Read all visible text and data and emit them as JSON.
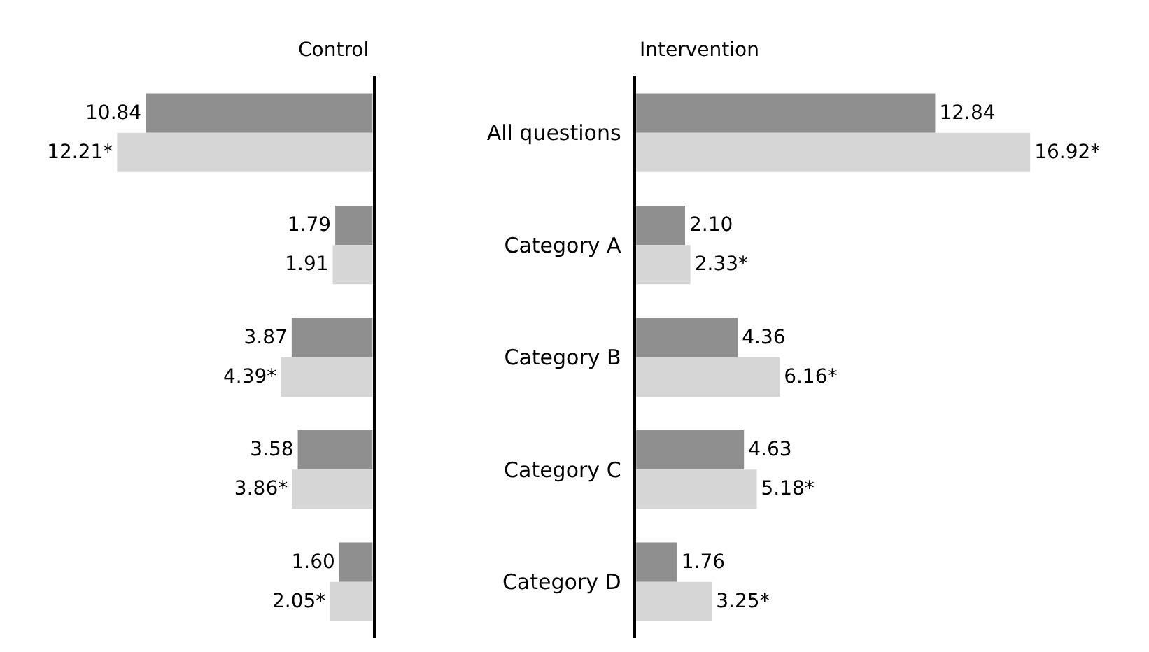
{
  "chart_data": [
    {
      "type": "bar",
      "orientation": "horizontal",
      "title": "Control",
      "categories": [
        null,
        null,
        null,
        null,
        null
      ],
      "tick_labels": false,
      "series": [
        {
          "color": "#8f8f8f",
          "values": [
            10.84,
            1.79,
            3.87,
            3.58,
            1.6
          ],
          "value_labels": [
            "10.84",
            "1.79",
            "3.87",
            "3.58",
            "1.60"
          ]
        },
        {
          "color": "#d6d6d6",
          "values": [
            12.21,
            1.91,
            4.39,
            3.86,
            2.05
          ],
          "value_labels": [
            "12.21*",
            "1.91",
            "4.39*",
            "3.86*",
            "2.05*"
          ]
        }
      ]
    },
    {
      "type": "bar",
      "orientation": "horizontal",
      "title": "Intervention",
      "categories": [
        "All questions",
        "Category A",
        "Category B",
        "Category C",
        "Category D"
      ],
      "tick_labels": "y",
      "series": [
        {
          "color": "#8f8f8f",
          "values": [
            12.84,
            2.1,
            4.36,
            4.63,
            1.76
          ],
          "value_labels": [
            "12.84",
            "2.10",
            "4.36",
            "4.63",
            "1.76"
          ]
        },
        {
          "color": "#d6d6d6",
          "values": [
            16.92,
            2.33,
            6.16,
            5.18,
            3.25
          ],
          "value_labels": [
            "16.92*",
            "2.33*",
            "6.16*",
            "5.18*",
            "3.25*"
          ]
        }
      ]
    }
  ]
}
